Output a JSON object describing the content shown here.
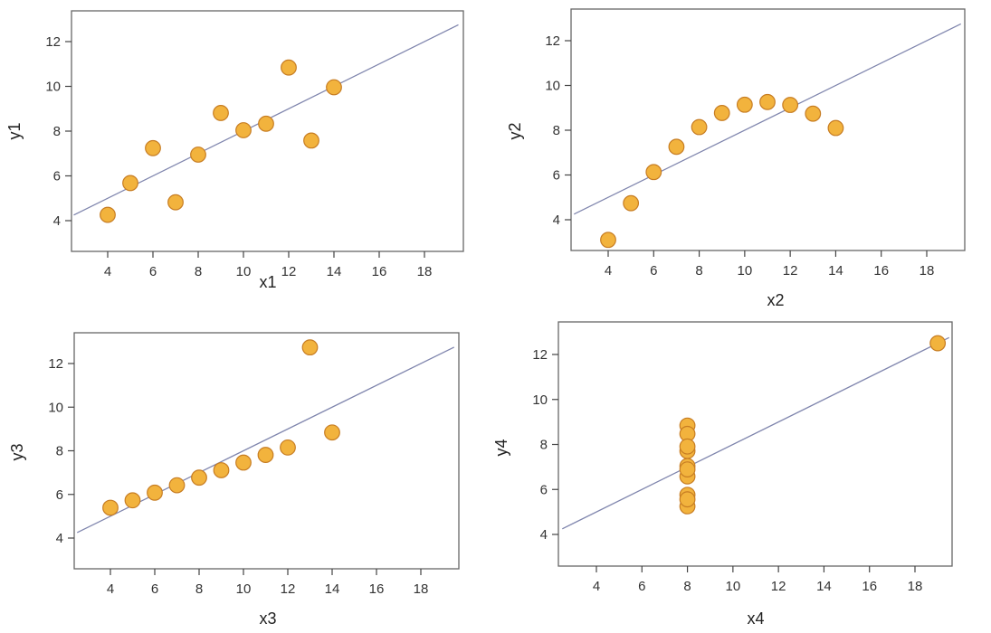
{
  "colors": {
    "point_fill": "#f2b33d",
    "point_stroke": "#c77d23",
    "fit_line": "#7f85ad",
    "axis": "#444444",
    "frame": "#666666"
  },
  "chart_data": [
    {
      "type": "scatter",
      "title": "",
      "xlabel": "x1",
      "ylabel": "y1",
      "xlim": [
        2.5,
        19.5
      ],
      "ylim": [
        2.5,
        13.3
      ],
      "xticks": [
        "4",
        "6",
        "8",
        "10",
        "12",
        "14",
        "16",
        "18"
      ],
      "yticks": [
        "4",
        "6",
        "8",
        "10",
        "12"
      ],
      "grid": false,
      "fit_line": {
        "intercept": 3.0,
        "slope": 0.5
      },
      "points": [
        {
          "x": 10,
          "y": 8.04
        },
        {
          "x": 8,
          "y": 6.95
        },
        {
          "x": 13,
          "y": 7.58
        },
        {
          "x": 9,
          "y": 8.81
        },
        {
          "x": 11,
          "y": 8.33
        },
        {
          "x": 14,
          "y": 9.96
        },
        {
          "x": 6,
          "y": 7.24
        },
        {
          "x": 4,
          "y": 4.26
        },
        {
          "x": 12,
          "y": 10.84
        },
        {
          "x": 7,
          "y": 4.82
        },
        {
          "x": 5,
          "y": 5.68
        }
      ]
    },
    {
      "type": "scatter",
      "title": "",
      "xlabel": "x2",
      "ylabel": "y2",
      "xlim": [
        2.5,
        19.5
      ],
      "ylim": [
        2.5,
        13.3
      ],
      "xticks": [
        "4",
        "6",
        "8",
        "10",
        "12",
        "14",
        "16",
        "18"
      ],
      "yticks": [
        "4",
        "6",
        "8",
        "10",
        "12"
      ],
      "grid": false,
      "fit_line": {
        "intercept": 3.0,
        "slope": 0.5
      },
      "points": [
        {
          "x": 10,
          "y": 9.14
        },
        {
          "x": 8,
          "y": 8.14
        },
        {
          "x": 13,
          "y": 8.74
        },
        {
          "x": 9,
          "y": 8.77
        },
        {
          "x": 11,
          "y": 9.26
        },
        {
          "x": 14,
          "y": 8.1
        },
        {
          "x": 6,
          "y": 6.13
        },
        {
          "x": 4,
          "y": 3.1
        },
        {
          "x": 12,
          "y": 9.13
        },
        {
          "x": 7,
          "y": 7.26
        },
        {
          "x": 5,
          "y": 4.74
        }
      ]
    },
    {
      "type": "scatter",
      "title": "",
      "xlabel": "x3",
      "ylabel": "y3",
      "xlim": [
        2.5,
        19.5
      ],
      "ylim": [
        2.5,
        13.3
      ],
      "xticks": [
        "4",
        "6",
        "8",
        "10",
        "12",
        "14",
        "16",
        "18"
      ],
      "yticks": [
        "4",
        "6",
        "8",
        "10",
        "12"
      ],
      "grid": false,
      "fit_line": {
        "intercept": 3.0,
        "slope": 0.5
      },
      "points": [
        {
          "x": 10,
          "y": 7.46
        },
        {
          "x": 8,
          "y": 6.77
        },
        {
          "x": 13,
          "y": 12.74
        },
        {
          "x": 9,
          "y": 7.11
        },
        {
          "x": 11,
          "y": 7.81
        },
        {
          "x": 14,
          "y": 8.84
        },
        {
          "x": 6,
          "y": 6.08
        },
        {
          "x": 4,
          "y": 5.39
        },
        {
          "x": 12,
          "y": 8.15
        },
        {
          "x": 7,
          "y": 6.42
        },
        {
          "x": 5,
          "y": 5.73
        }
      ]
    },
    {
      "type": "scatter",
      "title": "",
      "xlabel": "x4",
      "ylabel": "y4",
      "xlim": [
        2.5,
        19.5
      ],
      "ylim": [
        2.5,
        13.3
      ],
      "xticks": [
        "4",
        "6",
        "8",
        "10",
        "12",
        "14",
        "16",
        "18"
      ],
      "yticks": [
        "4",
        "6",
        "8",
        "10",
        "12"
      ],
      "grid": false,
      "fit_line": {
        "intercept": 3.0,
        "slope": 0.5
      },
      "points": [
        {
          "x": 8,
          "y": 6.58
        },
        {
          "x": 8,
          "y": 5.76
        },
        {
          "x": 8,
          "y": 7.71
        },
        {
          "x": 8,
          "y": 8.84
        },
        {
          "x": 8,
          "y": 8.47
        },
        {
          "x": 8,
          "y": 7.04
        },
        {
          "x": 8,
          "y": 5.25
        },
        {
          "x": 19,
          "y": 12.5
        },
        {
          "x": 8,
          "y": 5.56
        },
        {
          "x": 8,
          "y": 7.91
        },
        {
          "x": 8,
          "y": 6.89
        }
      ]
    }
  ]
}
